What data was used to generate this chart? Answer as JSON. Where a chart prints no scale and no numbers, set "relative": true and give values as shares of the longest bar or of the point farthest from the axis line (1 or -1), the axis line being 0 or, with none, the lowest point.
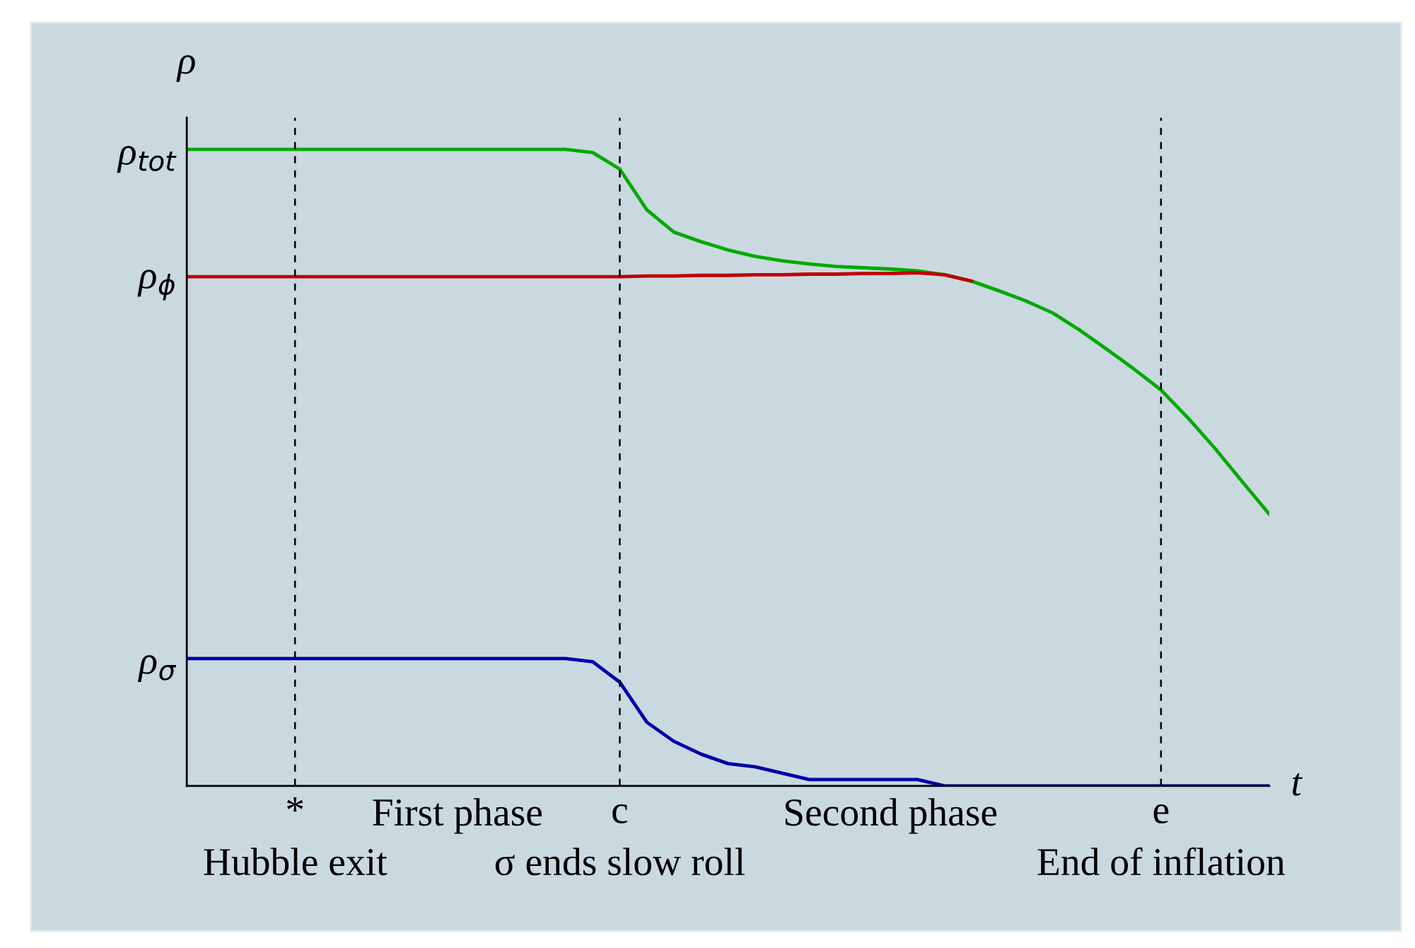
{
  "chart_data": {
    "type": "line",
    "relative": true,
    "xlabel": "t",
    "ylabel": "ρ",
    "categories": [
      null,
      null,
      null,
      null,
      "*\nHubble exit",
      null,
      null,
      null,
      null,
      null,
      null,
      null,
      null,
      null,
      null,
      null,
      "c\nσ ends slow roll",
      null,
      null,
      null,
      null,
      null,
      null,
      null,
      null,
      null,
      null,
      null,
      null,
      null,
      null,
      null,
      null,
      null,
      null,
      null,
      "e\nEnd of inflation",
      null,
      null,
      null,
      null
    ],
    "series": [
      {
        "color": "#00aa00",
        "values": [
          1.0,
          1.0,
          1.0,
          1.0,
          1.0,
          1.0,
          1.0,
          1.0,
          1.0,
          1.0,
          1.0,
          1.0,
          1.0,
          1.0,
          1.0,
          0.995,
          0.969,
          0.905,
          0.87,
          0.855,
          0.842,
          0.832,
          0.825,
          0.82,
          0.816,
          0.814,
          0.812,
          0.809,
          0.803,
          0.793,
          0.778,
          0.762,
          0.743,
          0.716,
          0.686,
          0.655,
          0.622,
          0.578,
          0.53,
          0.478,
          0.427
        ]
      },
      {
        "color": "#c00000",
        "values": [
          0.8,
          0.8,
          0.8,
          0.8,
          0.8,
          0.8,
          0.8,
          0.8,
          0.8,
          0.8,
          0.8,
          0.8,
          0.8,
          0.8,
          0.8,
          0.8,
          0.8,
          0.801,
          0.801,
          0.802,
          0.802,
          0.803,
          0.803,
          0.804,
          0.804,
          0.805,
          0.805,
          0.806,
          0.803,
          0.793,
          null,
          null,
          null,
          null,
          null,
          null,
          null,
          null,
          null,
          null,
          null
        ]
      },
      {
        "color": "#0000aa",
        "values": [
          0.2,
          0.2,
          0.2,
          0.2,
          0.2,
          0.2,
          0.2,
          0.2,
          0.2,
          0.2,
          0.2,
          0.2,
          0.2,
          0.2,
          0.2,
          0.195,
          0.163,
          0.1,
          0.07,
          0.05,
          0.035,
          0.03,
          0.02,
          0.01,
          0.01,
          0.01,
          0.01,
          0.01,
          0.0,
          0.0,
          0.0,
          0.0,
          0.0,
          0.0,
          0.0,
          0.0,
          0.0,
          0.0,
          0.0,
          0.0,
          0.0
        ]
      }
    ],
    "ref_lines": [
      {
        "axis": "x",
        "value": "*\nHubble exit",
        "line_style": "dashed",
        "color": "#000000"
      },
      {
        "axis": "x",
        "value": "c\nσ ends slow roll",
        "line_style": "dashed",
        "color": "#000000"
      },
      {
        "axis": "x",
        "value": "e\nEnd of inflation",
        "line_style": "dashed",
        "color": "#000000"
      }
    ],
    "annotations": [
      "ρ$_{tot}$",
      "ρ$_{ϕ}$",
      "ρ$_{σ}$",
      "First phase",
      "Second phase"
    ],
    "grid": false,
    "legend": false
  }
}
